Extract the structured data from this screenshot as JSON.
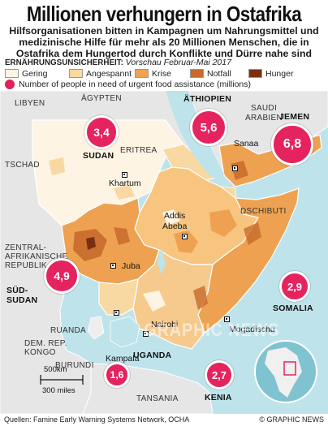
{
  "title": "Millionen verhungern in Ostafrika",
  "subtitle": "Hilfsorganisationen bitten in Kampagnen um Nahrungsmittel und medizinische Hilfe für mehr als 20 Millionen Menschen, die in Ostafrika dem Hungertod durch Konflikte und Dürre nahe sind",
  "legend": {
    "heading": "ERNÄHRUNGSUNSICHERHEIT:",
    "subheading": "Vorschau Februar-Mai 2017",
    "categories": [
      {
        "label": "Gering",
        "color": "#fdf4e3"
      },
      {
        "label": "Angespannt",
        "color": "#f9d9a2"
      },
      {
        "label": "Krise",
        "color": "#eea251"
      },
      {
        "label": "Notfall",
        "color": "#c76a2c"
      },
      {
        "label": "Hunger",
        "color": "#7a2f12"
      }
    ],
    "circle_label": "Number of people in need of urgent food assistance (millions)",
    "circle_color": "#e5235f"
  },
  "bubbles": [
    {
      "country": "SUDAN",
      "value": "3,4"
    },
    {
      "country": "ÄTHIOPIEN",
      "value": "5,6"
    },
    {
      "country": "JEMEN",
      "value": "6,8"
    },
    {
      "country": "SÜD-SUDAN",
      "value": "4,9"
    },
    {
      "country": "SOMALIA",
      "value": "2,9"
    },
    {
      "country": "UGANDA",
      "value": "1,6"
    },
    {
      "country": "KENIA",
      "value": "2,7"
    }
  ],
  "countries": {
    "libyen": "LIBYEN",
    "aegypten": "ÄGYPTEN",
    "saudi": "SAUDI ARABIEN",
    "saudi_l1": "SAUDI",
    "saudi_l2": "ARABIEN",
    "tschad": "TSCHAD",
    "eritrea": "ERITREA",
    "dschibuti": "DSCHIBUTI",
    "zar_l1": "ZENTRAL-",
    "zar_l2": "AFRIKANISCHE",
    "zar_l3": "REPUBLIK",
    "ruanda": "RUANDA",
    "kongo_l1": "DEM. REP.",
    "kongo_l2": "KONGO",
    "burundi": "BURUNDI",
    "tansania": "TANSANIA",
    "sudan": "SUDAN",
    "aethiopien": "ÄTHIOPIEN",
    "jemen": "JEMEN",
    "suedsudan_l1": "SÜD-",
    "suedsudan_l2": "SUDAN",
    "somalia": "SOMALIA",
    "uganda": "UGANDA",
    "kenia": "KENIA"
  },
  "cities": {
    "khartum": "Khartum",
    "sanaa": "Sanaa",
    "addis_l1": "Addis",
    "addis_l2": "Abeba",
    "juba": "Juba",
    "nairobi": "Nairobi",
    "mogadischu": "Mogadischu",
    "kampala": "Kampala"
  },
  "scale": {
    "km": "500km",
    "miles": "300 miles"
  },
  "footer": {
    "source": "Quellen: Famine Early Warning Systems Network, OCHA",
    "credit": "© GRAPHIC NEWS"
  },
  "watermark": "GRAPHIC NEWS"
}
